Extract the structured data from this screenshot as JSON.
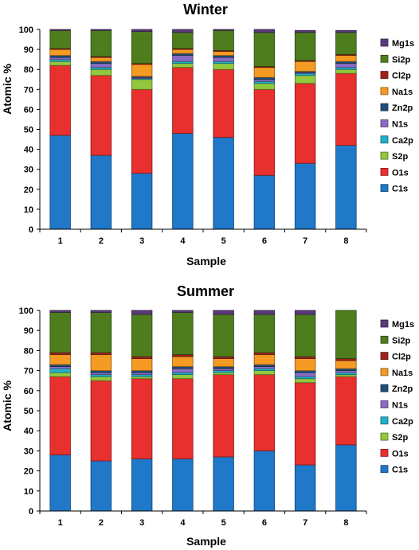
{
  "chart_data": [
    {
      "type": "bar",
      "stacked": true,
      "title": "Winter",
      "xlabel": "Sample",
      "ylabel": "Atomic %",
      "ylim": [
        0,
        100
      ],
      "yticks": [
        0,
        10,
        20,
        30,
        40,
        50,
        60,
        70,
        80,
        90,
        100
      ],
      "categories": [
        "1",
        "2",
        "3",
        "4",
        "5",
        "6",
        "7",
        "8"
      ],
      "legend_position": "right",
      "series": [
        {
          "name": "C1s",
          "color": "#1f78c8",
          "values": [
            47,
            37,
            28,
            48,
            46,
            27,
            33,
            42
          ]
        },
        {
          "name": "O1s",
          "color": "#e8302e",
          "values": [
            35,
            40,
            42,
            33,
            34,
            43,
            40,
            36
          ]
        },
        {
          "name": "S2p",
          "color": "#92c83e",
          "values": [
            2,
            3,
            5,
            2,
            3,
            3,
            4,
            2
          ]
        },
        {
          "name": "Ca2p",
          "color": "#1fb3c8",
          "values": [
            1,
            1,
            0.5,
            1,
            1,
            1,
            1,
            1
          ]
        },
        {
          "name": "N1s",
          "color": "#8a6cc4",
          "values": [
            1,
            2,
            0.5,
            3,
            2,
            1,
            0.5,
            2
          ]
        },
        {
          "name": "Zn2p",
          "color": "#1f4e79",
          "values": [
            1,
            1,
            0.5,
            1,
            1,
            1,
            0.5,
            1
          ]
        },
        {
          "name": "Na1s",
          "color": "#f59a23",
          "values": [
            3,
            2,
            6,
            2,
            2,
            5,
            5,
            3
          ]
        },
        {
          "name": "Cl2p",
          "color": "#a3211c",
          "values": [
            0.5,
            0.5,
            0.5,
            0.5,
            0.5,
            0.5,
            0.5,
            0.5
          ]
        },
        {
          "name": "Si2p",
          "color": "#4e7d1e",
          "values": [
            9,
            13,
            16,
            8,
            10,
            17,
            14,
            11
          ]
        },
        {
          "name": "Mg1s",
          "color": "#5b3a7a",
          "values": [
            0.5,
            0.5,
            1,
            1.5,
            0.5,
            1.5,
            1,
            1
          ]
        }
      ]
    },
    {
      "type": "bar",
      "stacked": true,
      "title": "Summer",
      "xlabel": "Sample",
      "ylabel": "Atomic %",
      "ylim": [
        0,
        100
      ],
      "yticks": [
        0,
        10,
        20,
        30,
        40,
        50,
        60,
        70,
        80,
        90,
        100
      ],
      "categories": [
        "1",
        "2",
        "3",
        "4",
        "5",
        "6",
        "7",
        "8"
      ],
      "legend_position": "right",
      "series": [
        {
          "name": "C1s",
          "color": "#1f78c8",
          "values": [
            28,
            25,
            26,
            26,
            27,
            30,
            23,
            33
          ]
        },
        {
          "name": "O1s",
          "color": "#e8302e",
          "values": [
            39,
            40,
            40,
            40,
            41,
            38,
            41,
            34
          ]
        },
        {
          "name": "S2p",
          "color": "#92c83e",
          "values": [
            2,
            2,
            1,
            2,
            1,
            2,
            2,
            1
          ]
        },
        {
          "name": "Ca2p",
          "color": "#1fb3c8",
          "values": [
            2,
            1,
            1,
            1,
            1,
            1,
            1,
            1
          ]
        },
        {
          "name": "N1s",
          "color": "#8a6cc4",
          "values": [
            1,
            1,
            1,
            2,
            1,
            1,
            2,
            1
          ]
        },
        {
          "name": "Zn2p",
          "color": "#1f4e79",
          "values": [
            1,
            1,
            1,
            1,
            1,
            1,
            1,
            1
          ]
        },
        {
          "name": "Na1s",
          "color": "#f59a23",
          "values": [
            5,
            8,
            6,
            5,
            4,
            5,
            6,
            4
          ]
        },
        {
          "name": "Cl2p",
          "color": "#a3211c",
          "values": [
            1,
            1,
            1,
            1,
            1,
            1,
            1,
            1
          ]
        },
        {
          "name": "Si2p",
          "color": "#4e7d1e",
          "values": [
            20,
            20,
            21,
            21,
            21,
            19,
            21,
            24
          ]
        },
        {
          "name": "Mg1s",
          "color": "#5b3a7a",
          "values": [
            1,
            1,
            2,
            1,
            2,
            2,
            2,
            0
          ]
        }
      ]
    }
  ]
}
